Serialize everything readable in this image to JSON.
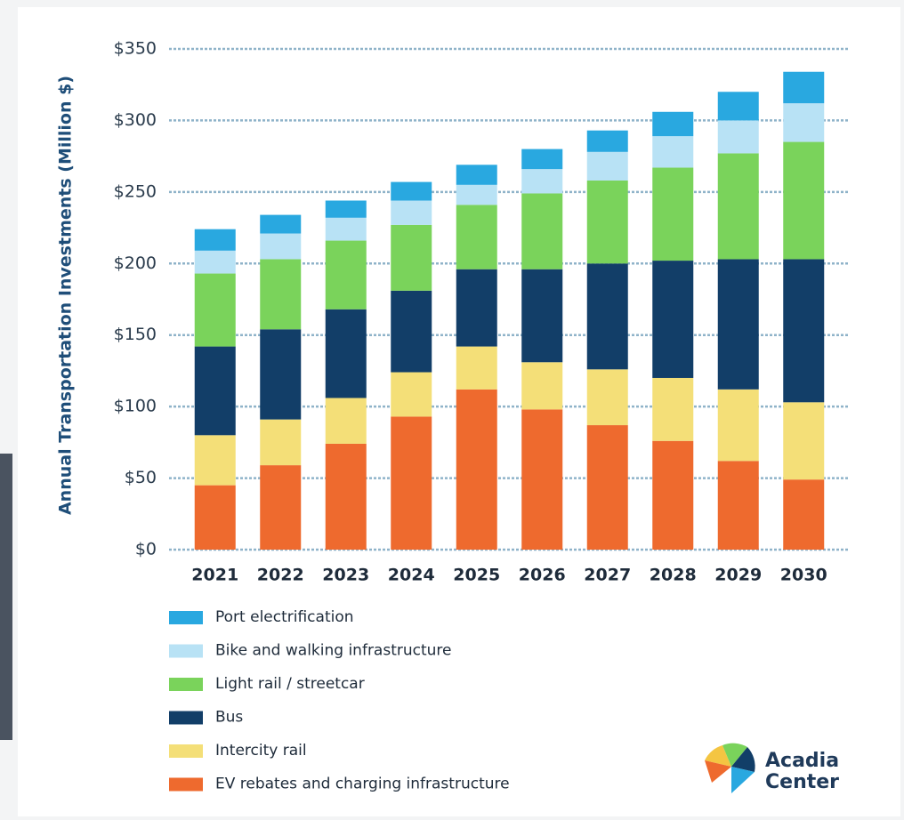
{
  "chart_data": {
    "type": "stacked_bar",
    "y_label": "Annual Transportation Investments (Million $)",
    "categories": [
      "2021",
      "2022",
      "2023",
      "2024",
      "2025",
      "2026",
      "2027",
      "2028",
      "2029",
      "2030"
    ],
    "series": [
      {
        "name": "EV rebates and charging infrastructure",
        "color": "#ee6a2e",
        "values": [
          45,
          59,
          74,
          93,
          112,
          98,
          87,
          76,
          62,
          49
        ]
      },
      {
        "name": "Intercity rail",
        "color": "#f4df78",
        "values": [
          35,
          32,
          32,
          31,
          30,
          33,
          39,
          44,
          50,
          54
        ]
      },
      {
        "name": "Bus",
        "color": "#123e68",
        "values": [
          62,
          63,
          62,
          57,
          54,
          65,
          74,
          82,
          91,
          100
        ]
      },
      {
        "name": "Light rail / streetcar",
        "color": "#7ad35b",
        "values": [
          51,
          49,
          48,
          46,
          45,
          53,
          58,
          65,
          74,
          82
        ]
      },
      {
        "name": "Bike and walking infrastructure",
        "color": "#b8e2f5",
        "values": [
          16,
          18,
          16,
          17,
          14,
          17,
          20,
          22,
          23,
          27
        ]
      },
      {
        "name": "Port electrification",
        "color": "#29a8e0",
        "values": [
          15,
          13,
          12,
          13,
          14,
          14,
          15,
          17,
          20,
          22
        ]
      }
    ],
    "ylim": [
      0,
      350
    ],
    "yticks": [
      {
        "value": 0,
        "label": "$0"
      },
      {
        "value": 50,
        "label": "$50"
      },
      {
        "value": 100,
        "label": "$100"
      },
      {
        "value": 150,
        "label": "$150"
      },
      {
        "value": 200,
        "label": "$200"
      },
      {
        "value": 250,
        "label": "$250"
      },
      {
        "value": 300,
        "label": "$300"
      },
      {
        "value": 350,
        "label": "$350"
      }
    ],
    "grid": true
  },
  "logo": {
    "lines": [
      "Acadia",
      "Center"
    ]
  }
}
